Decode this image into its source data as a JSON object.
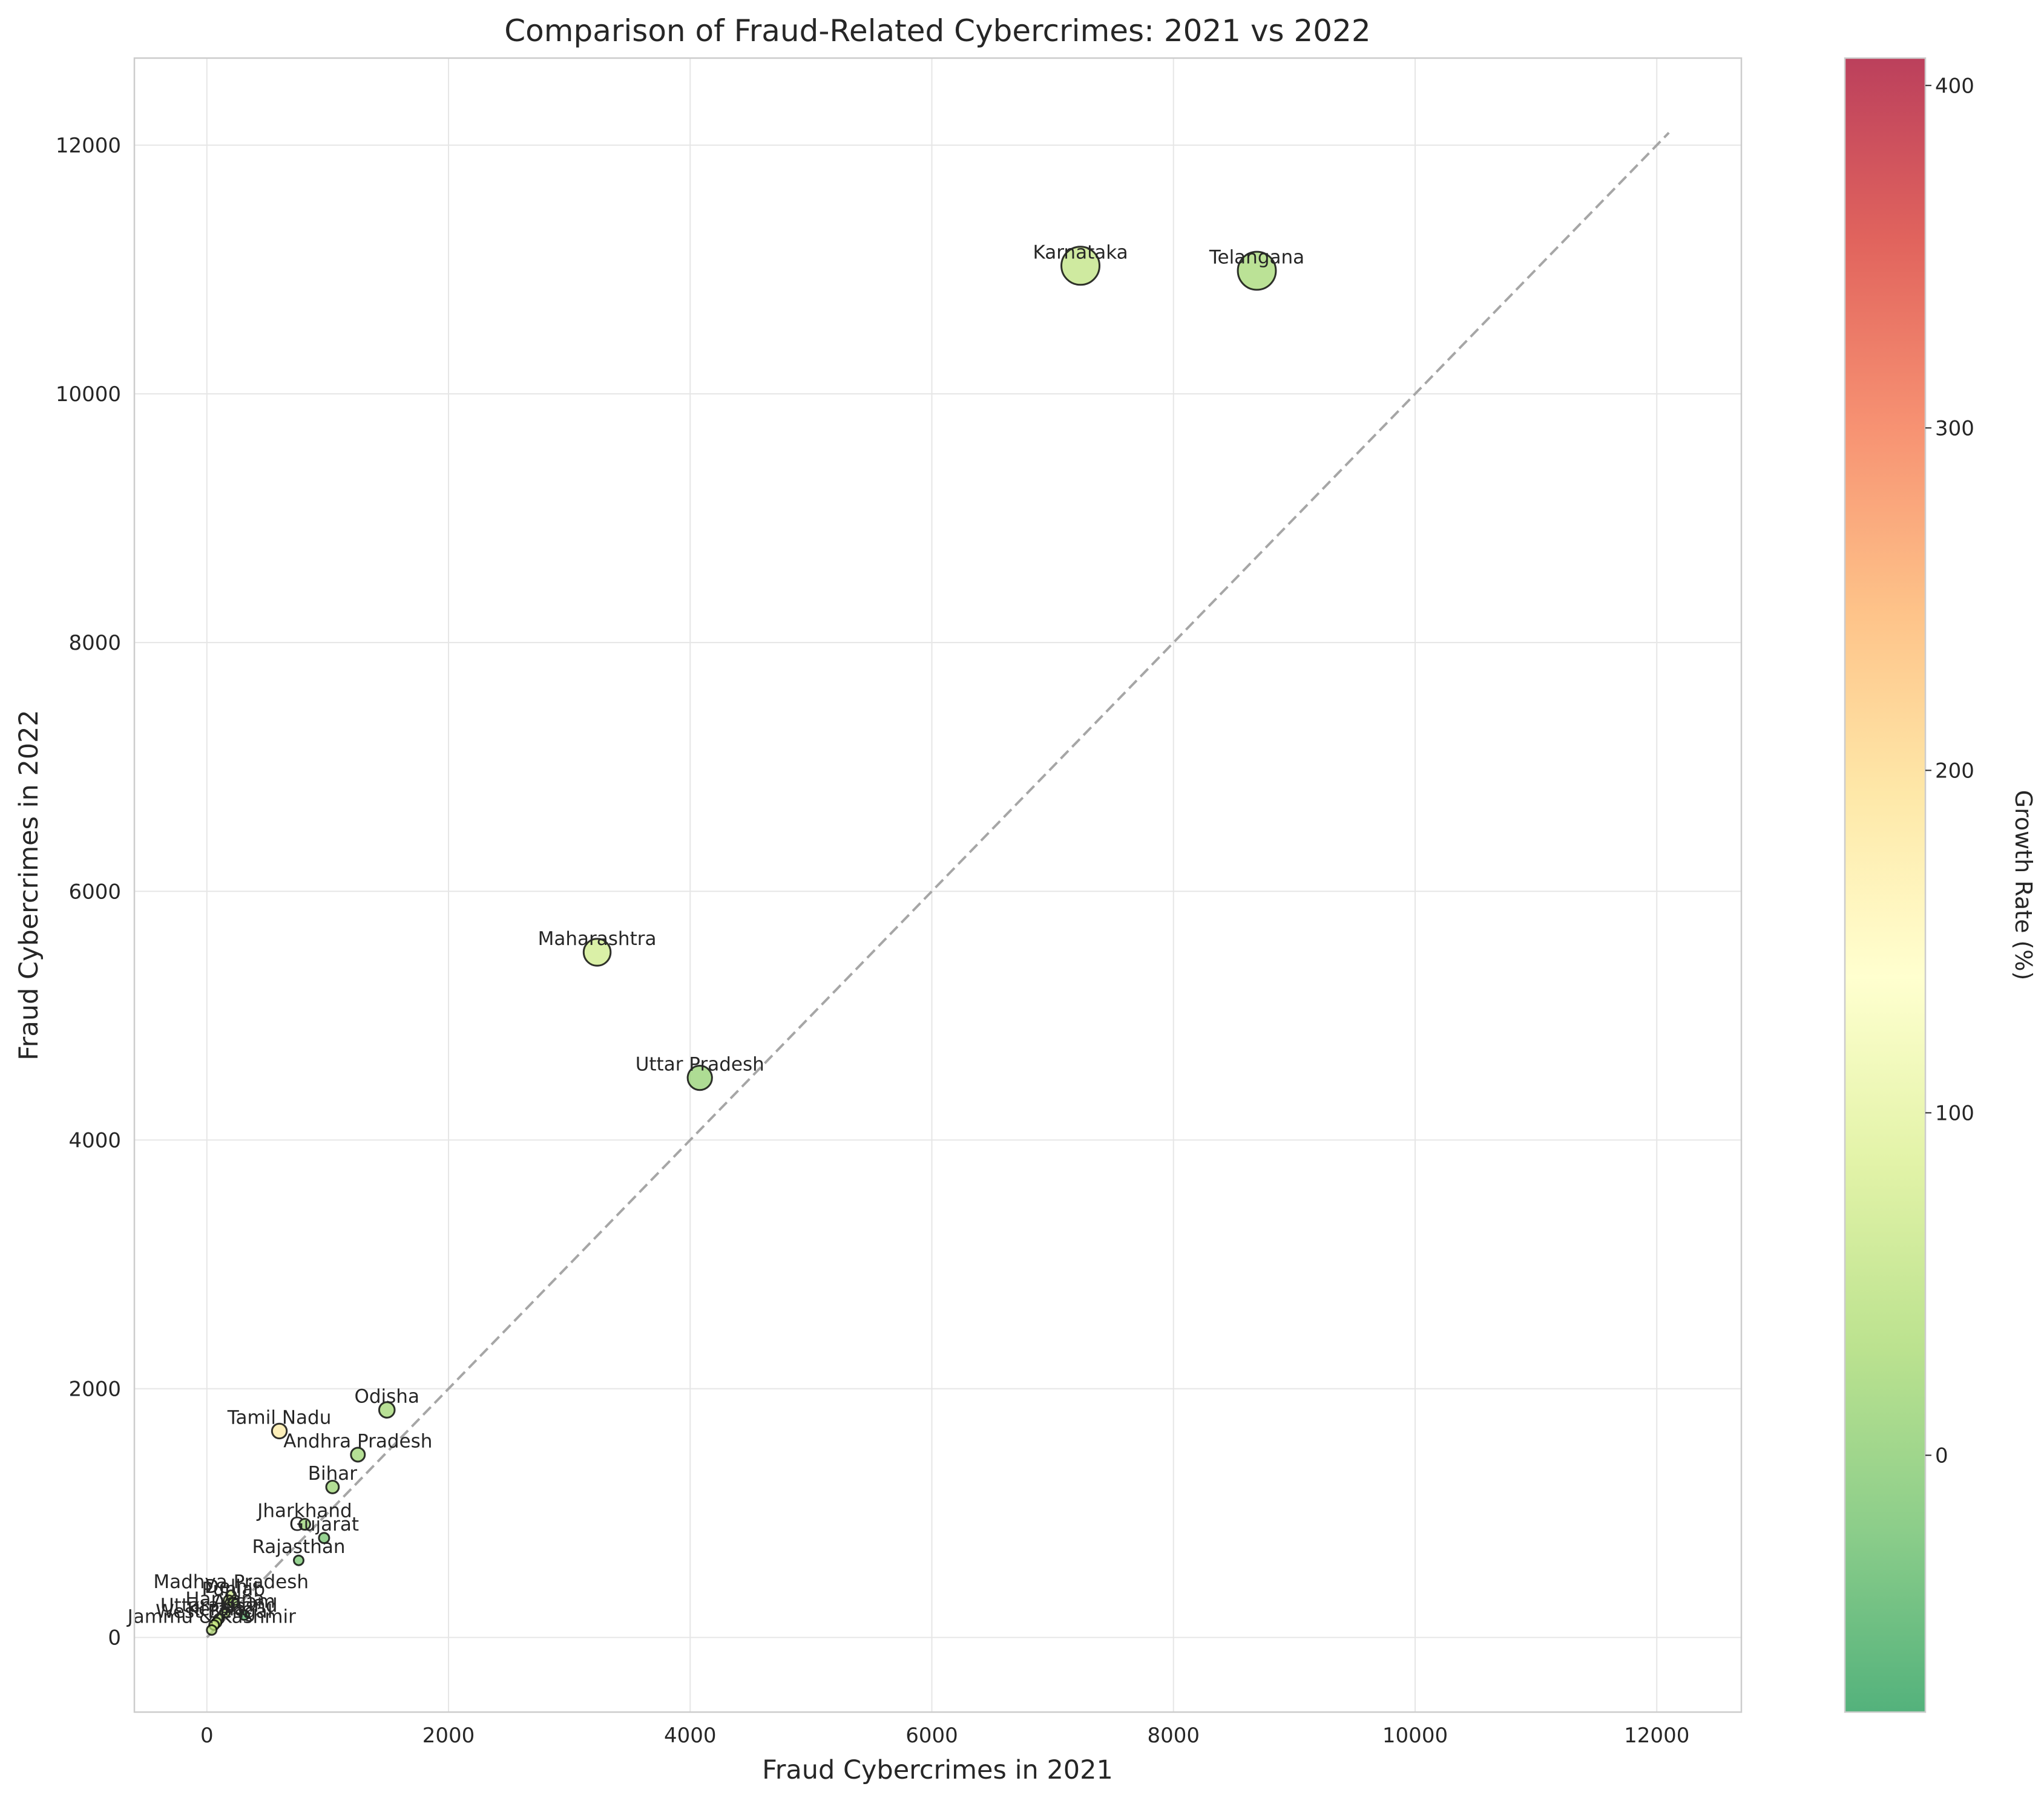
{
  "chart_data": {
    "type": "scatter",
    "title": "Comparison of Fraud-Related Cybercrimes: 2021 vs 2022",
    "xlabel": "Fraud Cybercrimes in 2021",
    "ylabel": "Fraud Cybercrimes in 2022",
    "xlim": [
      -600,
      12700
    ],
    "ylim": [
      -600,
      12700
    ],
    "xticks": [
      0,
      2000,
      4000,
      6000,
      8000,
      10000,
      12000
    ],
    "yticks": [
      0,
      2000,
      4000,
      6000,
      8000,
      10000,
      12000
    ],
    "grid": true,
    "reference_line": {
      "from": [
        0,
        0
      ],
      "to": [
        12100,
        12100
      ],
      "style": "dashed",
      "color": "#a6a6a6"
    },
    "colorbar": {
      "label": "Growth Rate (%)",
      "range": [
        -75,
        408
      ],
      "ticks": [
        0,
        100,
        200,
        300,
        400
      ],
      "colormap": "RdYlGn_r",
      "stops": [
        "#1a9850",
        "#66bd63",
        "#a6d96a",
        "#d9ef8b",
        "#ffffbf",
        "#fee08b",
        "#fdae61",
        "#f46d43",
        "#d73027",
        "#a50026"
      ]
    },
    "points": [
      {
        "label": "Karnataka",
        "x": 7230,
        "y": 11030,
        "growth": 53
      },
      {
        "label": "Telangana",
        "x": 8690,
        "y": 10990,
        "growth": 26
      },
      {
        "label": "Maharashtra",
        "x": 3230,
        "y": 5510,
        "growth": 71
      },
      {
        "label": "Uttar Pradesh",
        "x": 4080,
        "y": 4500,
        "growth": 10
      },
      {
        "label": "Odisha",
        "x": 1490,
        "y": 1830,
        "growth": 23
      },
      {
        "label": "Tamil Nadu",
        "x": 600,
        "y": 1660,
        "growth": 176
      },
      {
        "label": "Andhra Pradesh",
        "x": 1250,
        "y": 1470,
        "growth": 18
      },
      {
        "label": "Bihar",
        "x": 1040,
        "y": 1210,
        "growth": 16
      },
      {
        "label": "Jharkhand",
        "x": 810,
        "y": 910,
        "growth": 12
      },
      {
        "label": "Gujarat",
        "x": 970,
        "y": 800,
        "growth": -18
      },
      {
        "label": "Rajasthan",
        "x": 760,
        "y": 620,
        "growth": -18
      },
      {
        "label": "Madhya Pradesh",
        "x": 200,
        "y": 340,
        "growth": 70
      },
      {
        "label": "Delhi",
        "x": 180,
        "y": 300,
        "growth": 67
      },
      {
        "label": "Punjab",
        "x": 220,
        "y": 280,
        "growth": 27
      },
      {
        "label": "Assam",
        "x": 310,
        "y": 180,
        "growth": -42
      },
      {
        "label": "Haryana",
        "x": 150,
        "y": 200,
        "growth": 33
      },
      {
        "label": "Uttarakhand",
        "x": 100,
        "y": 150,
        "growth": 50
      },
      {
        "label": "Kerala",
        "x": 80,
        "y": 120,
        "growth": 50
      },
      {
        "label": "West Bengal",
        "x": 60,
        "y": 100,
        "growth": 67
      },
      {
        "label": "Jammu & Kashmir",
        "x": 40,
        "y": 60,
        "growth": 50
      }
    ]
  }
}
